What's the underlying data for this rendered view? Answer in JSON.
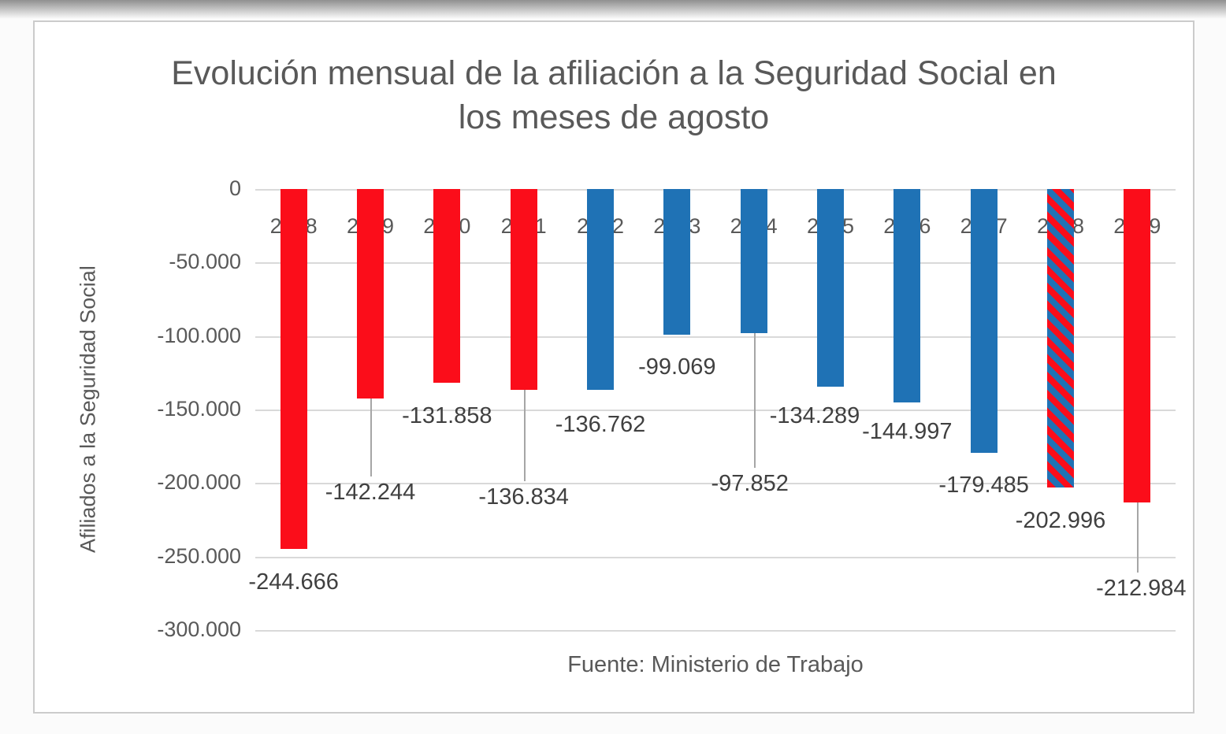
{
  "window": {
    "background": "#fbfbfb"
  },
  "chart_data": {
    "type": "bar",
    "title": "Evolución mensual de la afiliación a la Seguridad Social en los meses de agosto",
    "ylabel": "Afiliados a la Seguridad Social",
    "source_note": "Fuente: Ministerio de Trabajo",
    "categories": [
      "2008",
      "2009",
      "2010",
      "2011",
      "2012",
      "2013",
      "2014",
      "2015",
      "2016",
      "2017",
      "2018",
      "2019"
    ],
    "values": [
      -244666,
      -142244,
      -131858,
      -136834,
      -136762,
      -99069,
      -97852,
      -134289,
      -144997,
      -179485,
      -202996,
      -212984
    ],
    "data_labels": [
      "-244.666",
      "-142.244",
      "-131.858",
      "-136.834",
      "-136.762",
      "-99.069",
      "-97.852",
      "-134.289",
      "-144.997",
      "-179.485",
      "-202.996",
      "-212.984"
    ],
    "bar_colors": [
      "red",
      "red",
      "red",
      "red",
      "blue",
      "blue",
      "blue",
      "blue",
      "blue",
      "blue",
      "striped",
      "red"
    ],
    "palette": {
      "red": "#fb0d1a",
      "blue": "#1f72b5",
      "leader_line": "#a6a6a6",
      "gridline": "#d9d9d9",
      "axis_text": "#595959",
      "label_text": "#404040"
    },
    "ylim": [
      -300000,
      0
    ],
    "yticks": [
      0,
      -50000,
      -100000,
      -150000,
      -200000,
      -250000,
      -300000
    ],
    "ytick_labels": [
      "0",
      "-50.000",
      "-100.000",
      "-150.000",
      "-200.000",
      "-250.000",
      "-300.000"
    ],
    "grid": true,
    "legend_position": "none",
    "label_layout": [
      {
        "offset": 26,
        "leader": false,
        "dx": 0
      },
      {
        "offset": 103,
        "leader": true,
        "dx": 0
      },
      {
        "offset": 26,
        "leader": false,
        "dx": 0
      },
      {
        "offset": 120,
        "leader": true,
        "dx": 0
      },
      {
        "offset": 28,
        "leader": false,
        "dx": 0
      },
      {
        "offset": 25,
        "leader": false,
        "dx": 0
      },
      {
        "offset": 175,
        "leader": true,
        "dx": -5
      },
      {
        "offset": 21,
        "leader": false,
        "dx": -20
      },
      {
        "offset": 21,
        "leader": false,
        "dx": 0
      },
      {
        "offset": 25,
        "leader": false,
        "dx": 0
      },
      {
        "offset": 26,
        "leader": false,
        "dx": 0
      },
      {
        "offset": 93,
        "leader": true,
        "dx": 5
      }
    ]
  }
}
